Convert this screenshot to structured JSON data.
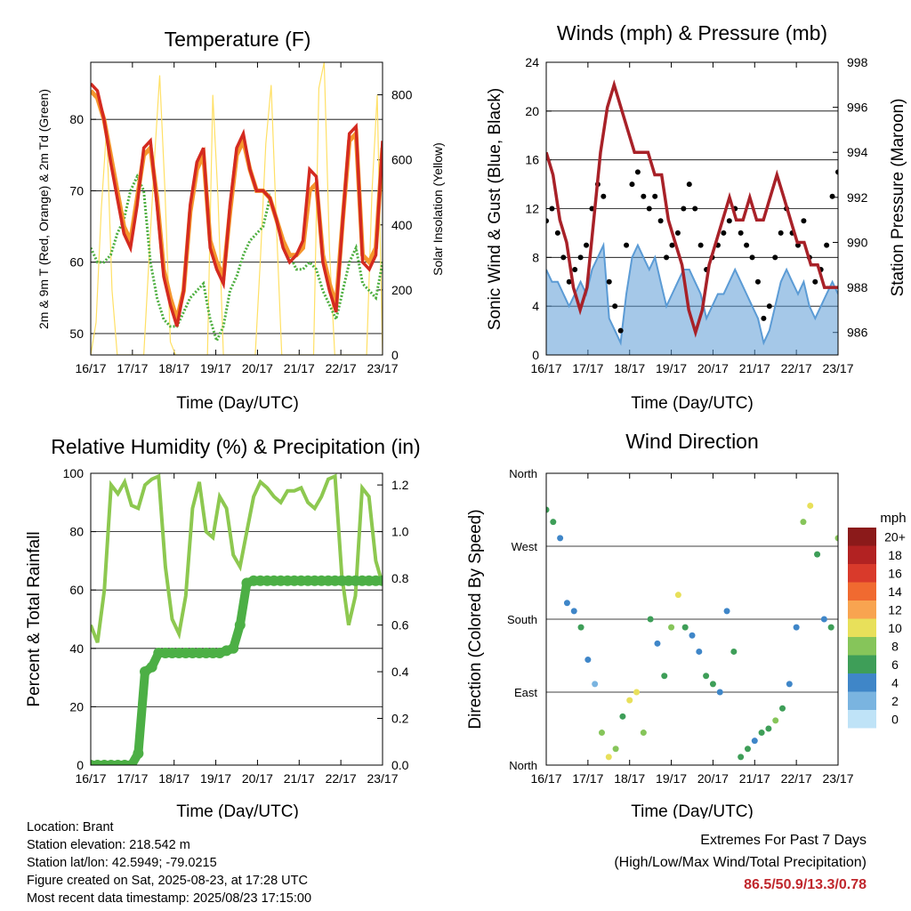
{
  "chart_data": [
    {
      "type": "line",
      "title": "Temperature (F)",
      "xlabel": "Time (Day/UTC)",
      "ylabel": "2m & 9m T (Red, Orange) & 2m Td (Green)",
      "y2label": "Solar Insolation (Yellow)",
      "x_ticks": [
        "16/17",
        "17/17",
        "18/17",
        "19/17",
        "20/17",
        "21/17",
        "22/17",
        "23/17"
      ],
      "ylim": [
        47,
        88
      ],
      "y_ticks": [
        50,
        60,
        70,
        80
      ],
      "y2lim": [
        0,
        900
      ],
      "y2_ticks": [
        0,
        200,
        400,
        600,
        800
      ],
      "colors": {
        "t2m": "#d42a20",
        "t9m": "#f5962d",
        "td": "#4cae3e",
        "solar": "#ffe065"
      },
      "series": [
        {
          "key": "t2m",
          "values": [
            85,
            84,
            80,
            74,
            69,
            64,
            62,
            68,
            76,
            77,
            68,
            58,
            54,
            51,
            56,
            68,
            74,
            76,
            62,
            59,
            57,
            68,
            76,
            78,
            73,
            70,
            70,
            69,
            66,
            62,
            60,
            61,
            63,
            73,
            72,
            60,
            56,
            53,
            66,
            78,
            79,
            60,
            59,
            61,
            77
          ]
        },
        {
          "key": "t9m",
          "values": [
            84,
            83,
            80,
            75,
            70,
            65,
            63,
            69,
            75,
            76,
            69,
            59,
            55,
            52,
            56,
            67,
            73,
            75,
            63,
            60,
            58,
            67,
            75,
            77,
            73,
            70,
            70,
            69,
            66,
            63,
            61,
            61,
            62,
            70,
            71,
            61,
            57,
            54,
            66,
            77,
            78,
            61,
            60,
            62,
            76
          ]
        },
        {
          "key": "td",
          "values": [
            62,
            60,
            60,
            61,
            64,
            66,
            70,
            72,
            70,
            60,
            55,
            52,
            51,
            51,
            53,
            55,
            56,
            57,
            52,
            49,
            51,
            56,
            58,
            61,
            63,
            64,
            65,
            69,
            66,
            62,
            61,
            59,
            59,
            60,
            59,
            56,
            54,
            52,
            56,
            60,
            62,
            57,
            56,
            55,
            60
          ]
        },
        {
          "key": "solar",
          "values": [
            0,
            100,
            450,
            700,
            200,
            0,
            0,
            0,
            0,
            0,
            0,
            300,
            600,
            860,
            500,
            40,
            0,
            0,
            0,
            0,
            0,
            0,
            0,
            800,
            480,
            0,
            0,
            0,
            0,
            0,
            0,
            0,
            300,
            650,
            830,
            400,
            0,
            0,
            0,
            0,
            0,
            0,
            0,
            820,
            900,
            320,
            0,
            0,
            0,
            0,
            0,
            0,
            0,
            500,
            800,
            0
          ]
        }
      ]
    },
    {
      "type": "scatter",
      "title": "Winds (mph) & Pressure (mb)",
      "xlabel": "Time (Day/UTC)",
      "ylabel": "Sonic Wind & Gust (Blue, Black)",
      "y2label": "Station Pressure (Maroon)",
      "x_ticks": [
        "16/17",
        "17/17",
        "18/17",
        "19/17",
        "20/17",
        "21/17",
        "22/17",
        "23/17"
      ],
      "ylim": [
        0,
        24
      ],
      "y_ticks": [
        0,
        4,
        8,
        12,
        16,
        20,
        24
      ],
      "y2lim": [
        985,
        998
      ],
      "y2_ticks": [
        986,
        988,
        990,
        992,
        994,
        996,
        998
      ],
      "colors": {
        "wind": "#5b9bd5",
        "gust": "#000000",
        "pressure": "#a82128"
      },
      "series": [
        {
          "key": "wind",
          "values": [
            7,
            6,
            6,
            5,
            4,
            5,
            6,
            5,
            7,
            8,
            9,
            3,
            2,
            1,
            5,
            8,
            9,
            8,
            7,
            8,
            6,
            4,
            5,
            6,
            7,
            7,
            6,
            5,
            3,
            4,
            5,
            5,
            6,
            7,
            6,
            5,
            4,
            3,
            1,
            2,
            4,
            6,
            7,
            6,
            5,
            6,
            4,
            3,
            4,
            5,
            6,
            5
          ]
        },
        {
          "key": "gust",
          "values": [
            11,
            12,
            10,
            8,
            6,
            7,
            8,
            9,
            12,
            14,
            13,
            6,
            4,
            2,
            9,
            14,
            15,
            13,
            12,
            13,
            11,
            8,
            9,
            10,
            12,
            14,
            12,
            9,
            7,
            8,
            9,
            10,
            11,
            12,
            10,
            9,
            8,
            6,
            3,
            4,
            8,
            10,
            12,
            10,
            9,
            11,
            8,
            6,
            7,
            9,
            13,
            15
          ]
        },
        {
          "key": "pressure",
          "values": [
            994,
            993,
            991,
            990,
            988,
            987,
            988,
            991,
            994,
            996,
            997,
            996,
            995,
            994,
            994,
            994,
            993,
            993,
            991,
            990,
            989,
            987,
            986,
            987,
            989,
            990,
            991,
            992,
            991,
            991,
            992,
            991,
            991,
            992,
            993,
            992,
            991,
            990,
            990,
            989,
            989,
            988,
            988,
            988
          ]
        }
      ]
    },
    {
      "type": "line",
      "title": "Relative Humidity (%) & Precipitation (in)",
      "xlabel": "Time (Day/UTC)",
      "ylabel": "Percent & Total Rainfall",
      "x_ticks": [
        "16/17",
        "17/17",
        "18/17",
        "19/17",
        "20/17",
        "21/17",
        "22/17",
        "23/17"
      ],
      "ylim": [
        0,
        100
      ],
      "y_ticks": [
        0,
        20,
        40,
        60,
        80,
        100
      ],
      "y2lim": [
        0,
        1.25
      ],
      "y2_ticks": [
        "0.0",
        "0.2",
        "0.4",
        "0.6",
        "0.8",
        "1.0",
        "1.2"
      ],
      "colors": {
        "rh": "#8dc850",
        "precip": "#4caf45"
      },
      "series": [
        {
          "key": "rh",
          "values": [
            48,
            42,
            60,
            96,
            93,
            97,
            89,
            88,
            96,
            98,
            99,
            68,
            50,
            45,
            58,
            88,
            97,
            80,
            78,
            92,
            88,
            72,
            68,
            80,
            92,
            97,
            95,
            92,
            90,
            94,
            94,
            95,
            90,
            88,
            92,
            98,
            99,
            65,
            48,
            58,
            95,
            92,
            70,
            62
          ]
        },
        {
          "key": "precip",
          "values": [
            0,
            0,
            0,
            0,
            0,
            0,
            0,
            0.05,
            0.4,
            0.42,
            0.48,
            0.48,
            0.48,
            0.48,
            0.48,
            0.48,
            0.48,
            0.48,
            0.48,
            0.48,
            0.49,
            0.5,
            0.6,
            0.78,
            0.79,
            0.79,
            0.79,
            0.79,
            0.79,
            0.79,
            0.79,
            0.79,
            0.79,
            0.79,
            0.79,
            0.79,
            0.79,
            0.79,
            0.79,
            0.79,
            0.79,
            0.79,
            0.79,
            0.79
          ]
        }
      ]
    },
    {
      "type": "scatter",
      "title": "Wind Direction",
      "xlabel": "Time (Day/UTC)",
      "ylabel": "Direction (Colored By Speed)",
      "x_ticks": [
        "16/17",
        "17/17",
        "18/17",
        "19/17",
        "20/17",
        "21/17",
        "22/17",
        "23/17"
      ],
      "y_ticks": [
        "North",
        "East",
        "South",
        "West",
        "North"
      ],
      "ylim": [
        0,
        360
      ],
      "legend": {
        "title": "mph",
        "labels": [
          "20+",
          "18",
          "16",
          "14",
          "12",
          "10",
          "8",
          "6",
          "4",
          "2",
          "0"
        ],
        "colors": [
          "#8b1a1a",
          "#b22222",
          "#d93a2b",
          "#f06a30",
          "#f8a450",
          "#e8e05a",
          "#86c55a",
          "#3e9e58",
          "#3f86c8",
          "#7ab4e0",
          "#bfe3f7"
        ],
        "placement": "right"
      },
      "series": [
        {
          "key": "direction",
          "values": [
            315,
            300,
            280,
            200,
            190,
            170,
            130,
            100,
            40,
            10,
            20,
            60,
            80,
            90,
            40,
            180,
            150,
            110,
            170,
            210,
            170,
            160,
            140,
            110,
            100,
            90,
            190,
            140,
            10,
            20,
            30,
            40,
            45,
            55,
            70,
            100,
            170,
            300,
            320,
            260,
            180,
            170,
            280
          ]
        },
        {
          "key": "speed",
          "values": [
            6,
            5,
            4,
            4,
            3,
            5,
            3,
            2,
            8,
            10,
            8,
            6,
            9,
            10,
            7,
            5,
            4,
            5,
            8,
            9,
            6,
            3,
            4,
            5,
            5,
            4,
            3,
            5,
            6,
            5,
            4,
            5,
            6,
            7,
            6,
            4,
            3,
            8,
            9,
            5,
            4,
            5,
            7
          ]
        }
      ]
    }
  ],
  "footer": {
    "location": "Location: Brant",
    "elevation": "Station elevation: 218.542 m",
    "latlon": "Station lat/lon: 42.5949; -79.0215",
    "created": "Figure created on Sat, 2025-08-23, at 17:28 UTC",
    "recent": "Most recent data timestamp: 2025/08/23 17:15:00"
  },
  "extremes": {
    "title": "Extremes For Past 7 Days",
    "subtitle": "(High/Low/Max Wind/Total Precipitation)",
    "values": "86.5/50.9/13.3/0.78"
  }
}
